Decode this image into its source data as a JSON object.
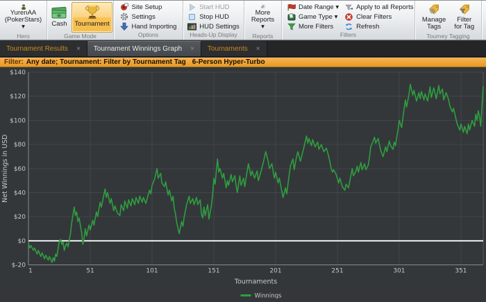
{
  "colors": {
    "line_green": "#2f9e3f",
    "accent_orange": "#f0a436",
    "chart_bg": "#33373a",
    "grid": "#42464a",
    "axis": "#85898d",
    "zero_line": "#eef0f1",
    "tick_text": "#c6c9cc",
    "tab_text_orange": "#c9891a"
  },
  "close_glyph": "×",
  "ribbon": {
    "hero": {
      "group_label": "Hero",
      "name_line1": "YurenAA",
      "name_line2": "(PokerStars) ▾"
    },
    "game_mode": {
      "group_label": "Game Mode",
      "cash": "Cash",
      "tournament": "Tournament"
    },
    "options": {
      "group_label": "Options",
      "items": [
        "Site Setup",
        "Settings",
        "Hand Importing"
      ]
    },
    "hud": {
      "group_label": "Heads-Up Display",
      "items": [
        "Start HUD",
        "Stop HUD",
        "HUD Settings"
      ]
    },
    "reports": {
      "group_label": "Reports",
      "more_line1": "More",
      "more_line2": "Reports ▾"
    },
    "filters": {
      "group_label": "Filters",
      "col1": [
        "Date Range ▾",
        "Game Type ▾",
        "More Filters"
      ],
      "col2": [
        "Apply to all Reports",
        "Clear Filters",
        "Refresh"
      ]
    },
    "tagging": {
      "group_label": "Tourney Tagging",
      "manage_line1": "Manage",
      "manage_line2": "Tags",
      "filter_line1": "Filter",
      "filter_line2": "for Tag"
    }
  },
  "tabs": [
    {
      "label": "Tournament Results",
      "active": false
    },
    {
      "label": "Tournament Winnings Graph",
      "active": true
    },
    {
      "label": "Tournaments",
      "active": false
    }
  ],
  "filter_bar": {
    "prefix": "Filter:",
    "text": "Any date; Tournament: Filter by Tournament Tag",
    "tag": "6-Person Hyper-Turbo"
  },
  "chart_data": {
    "type": "line",
    "xlabel": "Tournaments",
    "ylabel": "Net Winnings in USD",
    "xlim": [
      1,
      369
    ],
    "ylim": [
      -20,
      140
    ],
    "x_ticks": [
      1,
      51,
      101,
      151,
      201,
      251,
      301,
      351
    ],
    "y_ticks": [
      -20,
      0,
      20,
      40,
      60,
      80,
      100,
      120,
      140
    ],
    "y_tick_prefix": "$",
    "grid": true,
    "zero_line": true,
    "legend_position": "bottom",
    "legend": [
      {
        "name": "Winnings",
        "color": "#2f9e3f"
      }
    ],
    "series": [
      {
        "name": "Winnings",
        "color": "#2f9e3f",
        "points": [
          [
            1,
            -2
          ],
          [
            2,
            -6
          ],
          [
            3,
            -4
          ],
          [
            5,
            -8
          ],
          [
            6,
            -6
          ],
          [
            8,
            -11
          ],
          [
            9,
            -8
          ],
          [
            11,
            -13
          ],
          [
            12,
            -10
          ],
          [
            14,
            -15
          ],
          [
            15,
            -12
          ],
          [
            17,
            -16
          ],
          [
            18,
            -13
          ],
          [
            20,
            -18
          ],
          [
            21,
            -14
          ],
          [
            22,
            -17
          ],
          [
            23,
            -11
          ],
          [
            24,
            -13
          ],
          [
            26,
            0
          ],
          [
            27,
            1
          ],
          [
            28,
            -3
          ],
          [
            29,
            -1
          ],
          [
            30,
            -8
          ],
          [
            31,
            -4
          ],
          [
            32,
            -2
          ],
          [
            33,
            -5
          ],
          [
            35,
            6
          ],
          [
            36,
            15
          ],
          [
            38,
            28
          ],
          [
            39,
            21
          ],
          [
            40,
            24
          ],
          [
            41,
            16
          ],
          [
            42,
            19
          ],
          [
            44,
            7
          ],
          [
            45,
            -3
          ],
          [
            46,
            2
          ],
          [
            47,
            10
          ],
          [
            48,
            4
          ],
          [
            50,
            13
          ],
          [
            51,
            9
          ],
          [
            53,
            17
          ],
          [
            54,
            13
          ],
          [
            56,
            24
          ],
          [
            57,
            20
          ],
          [
            59,
            32
          ],
          [
            60,
            28
          ],
          [
            62,
            38
          ],
          [
            63,
            43
          ],
          [
            64,
            36
          ],
          [
            65,
            40
          ],
          [
            67,
            31
          ],
          [
            68,
            35
          ],
          [
            70,
            25
          ],
          [
            71,
            29
          ],
          [
            73,
            23
          ],
          [
            75,
            21
          ],
          [
            76,
            30
          ],
          [
            78,
            25
          ],
          [
            79,
            33
          ],
          [
            81,
            27
          ],
          [
            82,
            34
          ],
          [
            84,
            29
          ],
          [
            85,
            35
          ],
          [
            87,
            30
          ],
          [
            88,
            36
          ],
          [
            90,
            31
          ],
          [
            91,
            37
          ],
          [
            93,
            32
          ],
          [
            94,
            36
          ],
          [
            96,
            31
          ],
          [
            97,
            35
          ],
          [
            99,
            42
          ],
          [
            100,
            39
          ],
          [
            101,
            46
          ],
          [
            103,
            51
          ],
          [
            105,
            60
          ],
          [
            106,
            52
          ],
          [
            108,
            56
          ],
          [
            109,
            48
          ],
          [
            111,
            45
          ],
          [
            112,
            49
          ],
          [
            114,
            38
          ],
          [
            115,
            42
          ],
          [
            117,
            33
          ],
          [
            118,
            37
          ],
          [
            119,
            27
          ],
          [
            120,
            22
          ],
          [
            121,
            15
          ],
          [
            123,
            6
          ],
          [
            125,
            16
          ],
          [
            126,
            12
          ],
          [
            127,
            20
          ],
          [
            129,
            30
          ],
          [
            131,
            37
          ],
          [
            132,
            31
          ],
          [
            134,
            35
          ],
          [
            135,
            30
          ],
          [
            137,
            36
          ],
          [
            138,
            30
          ],
          [
            140,
            34
          ],
          [
            141,
            22
          ],
          [
            142,
            19
          ],
          [
            143,
            28
          ],
          [
            144,
            21
          ],
          [
            146,
            30
          ],
          [
            147,
            18
          ],
          [
            149,
            29
          ],
          [
            150,
            38
          ],
          [
            151,
            52
          ],
          [
            152,
            47
          ],
          [
            154,
            68
          ],
          [
            155,
            57
          ],
          [
            156,
            60
          ],
          [
            158,
            52
          ],
          [
            159,
            56
          ],
          [
            161,
            44
          ],
          [
            162,
            50
          ],
          [
            163,
            46
          ],
          [
            165,
            55
          ],
          [
            166,
            49
          ],
          [
            168,
            54
          ],
          [
            169,
            46
          ],
          [
            170,
            40
          ],
          [
            172,
            54
          ],
          [
            173,
            46
          ],
          [
            175,
            52
          ],
          [
            176,
            45
          ],
          [
            178,
            58
          ],
          [
            179,
            64
          ],
          [
            181,
            54
          ],
          [
            182,
            58
          ],
          [
            184,
            52
          ],
          [
            186,
            58
          ],
          [
            187,
            50
          ],
          [
            189,
            57
          ],
          [
            191,
            65
          ],
          [
            193,
            74
          ],
          [
            195,
            66
          ],
          [
            196,
            60
          ],
          [
            198,
            64
          ],
          [
            200,
            52
          ],
          [
            201,
            57
          ],
          [
            203,
            48
          ],
          [
            204,
            52
          ],
          [
            206,
            41
          ],
          [
            207,
            36
          ],
          [
            209,
            44
          ],
          [
            210,
            39
          ],
          [
            212,
            55
          ],
          [
            213,
            62
          ],
          [
            215,
            68
          ],
          [
            216,
            59
          ],
          [
            218,
            70
          ],
          [
            219,
            74
          ],
          [
            221,
            66
          ],
          [
            222,
            70
          ],
          [
            224,
            78
          ],
          [
            226,
            87
          ],
          [
            227,
            81
          ],
          [
            228,
            85
          ],
          [
            230,
            79
          ],
          [
            231,
            84
          ],
          [
            233,
            78
          ],
          [
            235,
            82
          ],
          [
            236,
            76
          ],
          [
            238,
            80
          ],
          [
            240,
            74
          ],
          [
            242,
            77
          ],
          [
            244,
            70
          ],
          [
            245,
            65
          ],
          [
            246,
            60
          ],
          [
            247,
            57
          ],
          [
            248,
            59
          ],
          [
            250,
            55
          ],
          [
            252,
            48
          ],
          [
            253,
            52
          ],
          [
            255,
            45
          ],
          [
            257,
            42
          ],
          [
            258,
            47
          ],
          [
            260,
            44
          ],
          [
            262,
            55
          ],
          [
            263,
            60
          ],
          [
            264,
            54
          ],
          [
            266,
            58
          ],
          [
            267,
            62
          ],
          [
            268,
            57
          ],
          [
            270,
            65
          ],
          [
            271,
            59
          ],
          [
            273,
            64
          ],
          [
            274,
            59
          ],
          [
            276,
            63
          ],
          [
            277,
            70
          ],
          [
            278,
            78
          ],
          [
            280,
            83
          ],
          [
            281,
            86
          ],
          [
            282,
            81
          ],
          [
            284,
            85
          ],
          [
            286,
            75
          ],
          [
            288,
            70
          ],
          [
            290,
            78
          ],
          [
            291,
            74
          ],
          [
            293,
            83
          ],
          [
            294,
            79
          ],
          [
            296,
            76
          ],
          [
            297,
            82
          ],
          [
            298,
            79
          ],
          [
            300,
            92
          ],
          [
            301,
            100
          ],
          [
            303,
            94
          ],
          [
            305,
            110
          ],
          [
            306,
            117
          ],
          [
            307,
            111
          ],
          [
            309,
            122
          ],
          [
            310,
            130
          ],
          [
            312,
            121
          ],
          [
            313,
            125
          ],
          [
            315,
            116
          ],
          [
            317,
            123
          ],
          [
            318,
            118
          ],
          [
            319,
            124
          ],
          [
            321,
            117
          ],
          [
            322,
            122
          ],
          [
            324,
            116
          ],
          [
            326,
            128
          ],
          [
            327,
            119
          ],
          [
            329,
            127
          ],
          [
            331,
            118
          ],
          [
            333,
            129
          ],
          [
            334,
            122
          ],
          [
            336,
            126
          ],
          [
            337,
            117
          ],
          [
            339,
            123
          ],
          [
            341,
            117
          ],
          [
            342,
            112
          ],
          [
            344,
            107
          ],
          [
            345,
            110
          ],
          [
            347,
            101
          ],
          [
            348,
            97
          ],
          [
            350,
            92
          ],
          [
            351,
            97
          ],
          [
            353,
            90
          ],
          [
            354,
            95
          ],
          [
            356,
            89
          ],
          [
            357,
            97
          ],
          [
            358,
            92
          ],
          [
            360,
            100
          ],
          [
            362,
            95
          ],
          [
            363,
            105
          ],
          [
            364,
            100
          ],
          [
            365,
            108
          ],
          [
            366,
            103
          ],
          [
            367,
            95
          ],
          [
            368,
            112
          ],
          [
            369,
            128
          ]
        ]
      }
    ]
  }
}
